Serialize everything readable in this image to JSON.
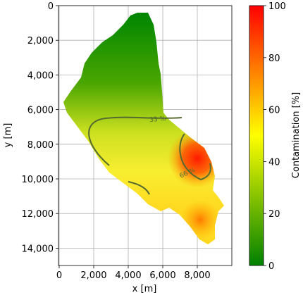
{
  "chart_data": {
    "type": "heatmap",
    "xlabel": "x [m]",
    "ylabel": "y [m]",
    "colorbar_label": "Contamination [%]",
    "xlim": [
      -40,
      10000
    ],
    "ylim": [
      15000,
      0
    ],
    "xticks": [
      0,
      {
        "value": 2000,
        "label": "2,000"
      },
      {
        "value": 4000,
        "label": "4,000"
      },
      {
        "value": 6000,
        "label": "6,000"
      },
      {
        "value": 8000,
        "label": "8,000"
      }
    ],
    "yticks": [
      0,
      {
        "value": 2000,
        "label": "2,000"
      },
      {
        "value": 4000,
        "label": "4,000"
      },
      {
        "value": 6000,
        "label": "6,000"
      },
      {
        "value": 8000,
        "label": "8,000"
      },
      {
        "value": 10000,
        "label": "10,000"
      },
      {
        "value": 12000,
        "label": "12,000"
      },
      {
        "value": 14000,
        "label": "14,000"
      }
    ],
    "clim": [
      0,
      100
    ],
    "cticks": [
      0,
      20,
      40,
      60,
      80,
      100
    ],
    "colormap": [
      "#008000",
      "#ffff00",
      "#ff0000"
    ],
    "grid": true,
    "contours": [
      {
        "level": 33,
        "label": "33 %"
      },
      {
        "level": 66,
        "label": "66 %"
      }
    ]
  }
}
